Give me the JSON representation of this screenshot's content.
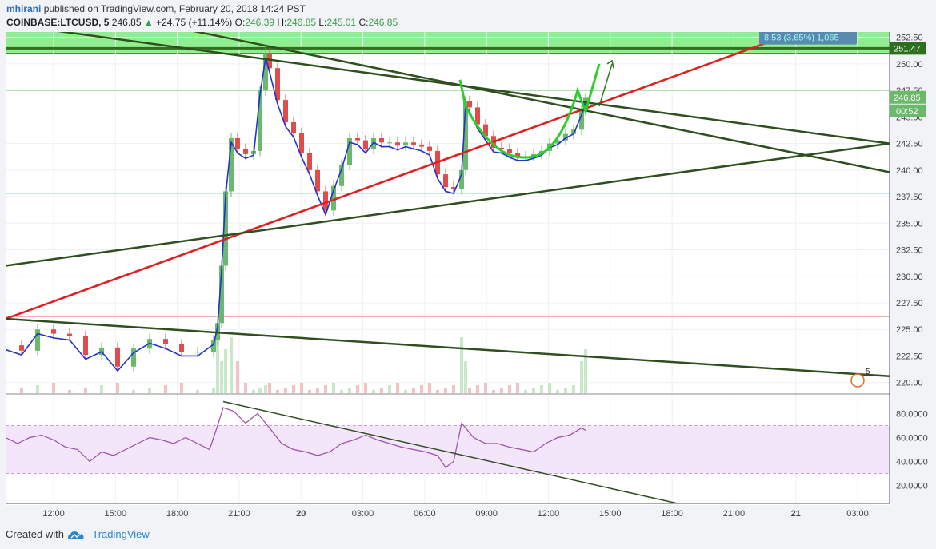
{
  "header": {
    "author": "mhirani",
    "published_text": "published on TradingView.com, February 20, 2018 14:24 PST",
    "symbol": "COINBASE:LTCUSD, 5",
    "last": "246.85",
    "change_arrow": "▲",
    "change": "+24.75 (+11.14%)",
    "o_label": "O:",
    "o": "246.39",
    "h_label": "H:",
    "h": "246.85",
    "l_label": "L:",
    "l": "245.01",
    "c_label": "C:",
    "c": "246.85"
  },
  "footer": {
    "created_with": "Created with",
    "brand": "TradingView",
    "logo_icon": "tradingview-cloud-icon"
  },
  "colors": {
    "up": "#6bb96b",
    "down": "#e04b4b",
    "ma_blue": "#2233cc",
    "trend_red": "#e01e1e",
    "trend_green": "#2f4f1f",
    "zone_green": "#90ee90",
    "rsi": "#9b4cad",
    "rsi_band": "#f3e5fa"
  },
  "chart_data": {
    "type": "candlestick",
    "price_axis": {
      "ticks": [
        "252.50",
        "250.00",
        "247.50",
        "245.00",
        "242.50",
        "240.00",
        "237.50",
        "235.00",
        "232.50",
        "230.00",
        "227.50",
        "225.00",
        "222.50",
        "220.00"
      ],
      "range": [
        219,
        253
      ]
    },
    "rsi_axis": {
      "ticks": [
        "80.0000",
        "60.0000",
        "40.0000",
        "20.0000"
      ],
      "range": [
        5,
        95
      ],
      "band": [
        30,
        70
      ]
    },
    "time_axis": {
      "ticks": [
        "12:00",
        "15:00",
        "18:00",
        "21:00",
        "20",
        "03:00",
        "06:00",
        "09:00",
        "12:00",
        "15:00",
        "18:00",
        "21:00",
        "21",
        "03:00"
      ],
      "bold": [
        "20",
        "21"
      ]
    },
    "price_labels": {
      "resistance": "251.47",
      "last": "246.85",
      "countdown": "00:52"
    },
    "measure_label": "8.53 (3.65%) 1,065",
    "levels": [
      251.47,
      247.5,
      237.8,
      226.2
    ],
    "resistance_zone": [
      251.0,
      254.0
    ],
    "trendlines": [
      {
        "color": "red",
        "from": [
          0,
          226.0
        ],
        "to": [
          1025,
          254.0
        ]
      },
      {
        "color": "green",
        "from": [
          25,
          253.5
        ],
        "to": [
          1105,
          242.5
        ]
      },
      {
        "color": "green",
        "from": [
          208,
          253.5
        ],
        "to": [
          1105,
          239.8
        ]
      },
      {
        "color": "green",
        "from": [
          0,
          231.0
        ],
        "to": [
          1105,
          242.5
        ]
      },
      {
        "color": "green",
        "from": [
          0,
          226.0
        ],
        "to": [
          1105,
          220.6
        ]
      }
    ],
    "price_series": [
      [
        0,
        223.5
      ],
      [
        20,
        223
      ],
      [
        40,
        225
      ],
      [
        60,
        224.6
      ],
      [
        80,
        224.4
      ],
      [
        100,
        222.6
      ],
      [
        120,
        223.3
      ],
      [
        140,
        221.5
      ],
      [
        160,
        223.2
      ],
      [
        180,
        224.1
      ],
      [
        200,
        223.6
      ],
      [
        220,
        222.9
      ],
      [
        240,
        222.9
      ],
      [
        260,
        224
      ],
      [
        265,
        225.6
      ],
      [
        270,
        231
      ],
      [
        275,
        238
      ],
      [
        282,
        243
      ],
      [
        290,
        242
      ],
      [
        300,
        241.5
      ],
      [
        310,
        241.8
      ],
      [
        318,
        247.5
      ],
      [
        325,
        251
      ],
      [
        330,
        249.6
      ],
      [
        340,
        246.6
      ],
      [
        350,
        244.5
      ],
      [
        360,
        243.5
      ],
      [
        370,
        241.6
      ],
      [
        380,
        240
      ],
      [
        390,
        238
      ],
      [
        400,
        236.2
      ],
      [
        410,
        238.5
      ],
      [
        420,
        240.5
      ],
      [
        430,
        243
      ],
      [
        440,
        242.8
      ],
      [
        450,
        242
      ],
      [
        460,
        243
      ],
      [
        470,
        242.6
      ],
      [
        480,
        242.6
      ],
      [
        490,
        242.3
      ],
      [
        500,
        242.6
      ],
      [
        510,
        242.4
      ],
      [
        520,
        242.2
      ],
      [
        530,
        241.8
      ],
      [
        540,
        239.6
      ],
      [
        550,
        238.4
      ],
      [
        560,
        238.2
      ],
      [
        570,
        240
      ],
      [
        575,
        246.5
      ],
      [
        580,
        245.9
      ],
      [
        590,
        244.3
      ],
      [
        600,
        243.2
      ],
      [
        610,
        242.1
      ],
      [
        620,
        242
      ],
      [
        630,
        241.6
      ],
      [
        640,
        241.3
      ],
      [
        650,
        241.3
      ],
      [
        660,
        241.5
      ],
      [
        670,
        241.8
      ],
      [
        680,
        242.5
      ],
      [
        690,
        242.8
      ],
      [
        700,
        243.4
      ],
      [
        710,
        243.8
      ],
      [
        720,
        245.6
      ],
      [
        725,
        246.8
      ]
    ],
    "rsi_series": [
      [
        0,
        60
      ],
      [
        15,
        55
      ],
      [
        30,
        60
      ],
      [
        45,
        62
      ],
      [
        60,
        58
      ],
      [
        75,
        52
      ],
      [
        90,
        50
      ],
      [
        105,
        40
      ],
      [
        120,
        48
      ],
      [
        135,
        45
      ],
      [
        150,
        50
      ],
      [
        165,
        55
      ],
      [
        180,
        60
      ],
      [
        195,
        58
      ],
      [
        210,
        55
      ],
      [
        225,
        60
      ],
      [
        240,
        55
      ],
      [
        255,
        50
      ],
      [
        265,
        70
      ],
      [
        272,
        85
      ],
      [
        285,
        82
      ],
      [
        300,
        72
      ],
      [
        315,
        80
      ],
      [
        330,
        68
      ],
      [
        345,
        55
      ],
      [
        360,
        50
      ],
      [
        375,
        48
      ],
      [
        390,
        45
      ],
      [
        405,
        48
      ],
      [
        420,
        55
      ],
      [
        435,
        58
      ],
      [
        450,
        62
      ],
      [
        465,
        58
      ],
      [
        480,
        55
      ],
      [
        495,
        52
      ],
      [
        510,
        50
      ],
      [
        525,
        48
      ],
      [
        540,
        45
      ],
      [
        550,
        35
      ],
      [
        560,
        40
      ],
      [
        570,
        72
      ],
      [
        585,
        60
      ],
      [
        600,
        55
      ],
      [
        615,
        55
      ],
      [
        630,
        52
      ],
      [
        645,
        50
      ],
      [
        660,
        48
      ],
      [
        675,
        55
      ],
      [
        690,
        60
      ],
      [
        705,
        62
      ],
      [
        720,
        68
      ],
      [
        725,
        66
      ]
    ],
    "rsi_trendline": {
      "from": [
        272,
        90
      ],
      "to": [
        840,
        5
      ]
    },
    "pattern_label": "5"
  }
}
